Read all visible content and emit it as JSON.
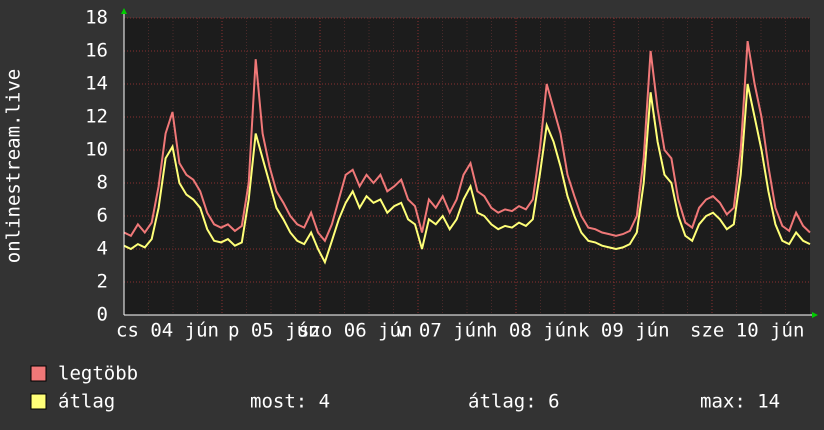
{
  "chart_data": {
    "type": "line",
    "ylabel": "onlinestream.live",
    "ylim": [
      0,
      18
    ],
    "yticks": [
      0,
      2,
      4,
      6,
      8,
      10,
      12,
      14,
      16,
      18
    ],
    "grid": true,
    "xtick_labels": [
      "cs 04 jún",
      "p 05 jún",
      "szo 06 jún",
      "v 07 jún",
      "h 08 jún",
      "k 09 jún",
      "sze 10 jún"
    ],
    "series": [
      {
        "name": "legtöbb",
        "color": "#f07878",
        "values": [
          5.0,
          4.8,
          5.5,
          5.0,
          5.6,
          7.8,
          11.0,
          12.3,
          9.2,
          8.5,
          8.2,
          7.5,
          6.2,
          5.5,
          5.3,
          5.5,
          5.1,
          5.4,
          8.0,
          15.5,
          11.0,
          9.0,
          7.5,
          6.8,
          6.0,
          5.5,
          5.3,
          6.2,
          5.0,
          4.5,
          5.5,
          7.0,
          8.5,
          8.8,
          7.8,
          8.5,
          8.0,
          8.5,
          7.5,
          7.8,
          8.2,
          7.0,
          6.6,
          5.0,
          7.0,
          6.5,
          7.2,
          6.2,
          7.0,
          8.5,
          9.2,
          7.5,
          7.2,
          6.5,
          6.2,
          6.4,
          6.3,
          6.6,
          6.4,
          7.0,
          10.0,
          14.0,
          12.5,
          11.0,
          8.5,
          7.2,
          6.0,
          5.3,
          5.2,
          5.0,
          4.9,
          4.8,
          4.9,
          5.1,
          6.0,
          9.5,
          16.0,
          12.5,
          10.0,
          9.5,
          7.0,
          5.6,
          5.3,
          6.5,
          7.0,
          7.2,
          6.8,
          6.1,
          6.5,
          10.0,
          16.6,
          14.0,
          12.0,
          9.0,
          6.5,
          5.4,
          5.1,
          6.2,
          5.4,
          5.0
        ]
      },
      {
        "name": "átlag",
        "color": "#ffff78",
        "values": [
          4.2,
          4.0,
          4.3,
          4.1,
          4.6,
          6.5,
          9.5,
          10.2,
          8.0,
          7.3,
          7.0,
          6.5,
          5.2,
          4.5,
          4.4,
          4.6,
          4.2,
          4.4,
          7.0,
          11.0,
          9.5,
          8.0,
          6.5,
          5.8,
          5.0,
          4.5,
          4.3,
          5.0,
          4.0,
          3.2,
          4.5,
          5.8,
          6.8,
          7.5,
          6.5,
          7.2,
          6.8,
          7.0,
          6.2,
          6.6,
          6.8,
          5.8,
          5.5,
          4.0,
          5.8,
          5.5,
          6.0,
          5.2,
          5.8,
          7.0,
          7.8,
          6.2,
          6.0,
          5.5,
          5.2,
          5.4,
          5.3,
          5.6,
          5.4,
          5.8,
          8.5,
          11.5,
          10.5,
          9.0,
          7.2,
          6.0,
          5.0,
          4.5,
          4.4,
          4.2,
          4.1,
          4.0,
          4.1,
          4.3,
          5.0,
          8.0,
          13.5,
          10.5,
          8.5,
          8.0,
          6.0,
          4.8,
          4.5,
          5.5,
          6.0,
          6.2,
          5.8,
          5.2,
          5.5,
          8.5,
          14.0,
          12.0,
          10.0,
          7.5,
          5.5,
          4.5,
          4.3,
          5.0,
          4.5,
          4.3
        ]
      }
    ],
    "legend_stats": [
      "most: 4",
      "átlag: 6",
      "max: 14"
    ]
  }
}
